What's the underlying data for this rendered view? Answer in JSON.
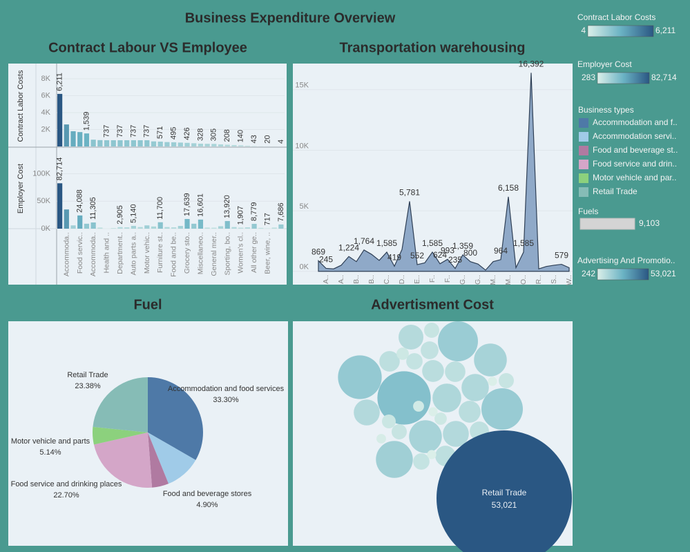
{
  "title": "Business Expenditure Overview",
  "color_range": [
    "#dbefe9",
    "#6bb3c4",
    "#2a5783"
  ],
  "legends": [
    {
      "title": "Contract Labor Costs",
      "min": 4,
      "max": 6211,
      "max_label": "6,211"
    },
    {
      "title": "Employer Cost",
      "min": 283,
      "max": 82714,
      "max_label": "82,714"
    },
    {
      "title": "Advertising And Promotio..",
      "min": 242,
      "max": 53021,
      "max_label": "53,021"
    }
  ],
  "fuels_legend": {
    "title": "Fuels",
    "max": 9103,
    "max_label": "9,103",
    "color": "#d4d4d4"
  },
  "business_types": {
    "title": "Business types",
    "items": [
      {
        "name": "Accommodation and f..",
        "color": "#4e79a7"
      },
      {
        "name": "Accommodation servi..",
        "color": "#a0cbe8"
      },
      {
        "name": "Food and beverage st..",
        "color": "#b07aa1"
      },
      {
        "name": "Food service and drin..",
        "color": "#d4a6c8"
      },
      {
        "name": "Motor vehicle and par..",
        "color": "#8cd17d"
      },
      {
        "name": "Retail Trade",
        "color": "#86bcb6"
      }
    ]
  },
  "chart_data": [
    {
      "type": "bar",
      "title": "Contract Labour VS  Employee",
      "categories": [
        null,
        "Accommoda..",
        null,
        "Food servic..",
        null,
        "Accommoda..",
        null,
        "Health and ..",
        null,
        "Department..",
        null,
        "Auto parts a..",
        null,
        "Motor vehic..",
        null,
        "Furniture st..",
        null,
        "Food and be..",
        null,
        "Grocery sto..",
        null,
        "Miscellaneo..",
        null,
        "General mer..",
        null,
        "Sporting, bo..",
        null,
        "Women's cl..",
        null,
        "All other ge..",
        null,
        "Beer, wine, ..",
        null,
        null
      ],
      "series": [
        {
          "name": "Contract Labor Costs",
          "values": [
            6211,
            2600,
            1800,
            1700,
            1539,
            800,
            750,
            737,
            737,
            737,
            737,
            737,
            737,
            737,
            600,
            571,
            520,
            495,
            460,
            426,
            380,
            328,
            315,
            305,
            250,
            208,
            170,
            140,
            90,
            43,
            30,
            20,
            10,
            4
          ],
          "value_labels": [
            "6,211",
            null,
            null,
            null,
            "1,539",
            null,
            null,
            "737",
            null,
            "737",
            null,
            "737",
            null,
            "737",
            null,
            "571",
            null,
            "495",
            null,
            "426",
            null,
            "328",
            null,
            "305",
            null,
            "208",
            null,
            "140",
            null,
            "43",
            null,
            "20",
            null,
            "4"
          ],
          "ylim": [
            0,
            9550
          ],
          "yticks": [
            {
              "value": 2000,
              "label": "2K"
            },
            {
              "value": 4000,
              "label": "4K"
            },
            {
              "value": 6000,
              "label": "6K"
            },
            {
              "value": 8000,
              "label": "8K"
            }
          ]
        },
        {
          "name": "Employer Cost",
          "values": [
            82714,
            35000,
            6000,
            24088,
            9000,
            11305,
            2000,
            283,
            1200,
            2905,
            2500,
            5140,
            3000,
            6000,
            4000,
            11700,
            3000,
            2500,
            5000,
            17639,
            9000,
            16601,
            2000,
            1800,
            4500,
            13920,
            3000,
            1907,
            2500,
            8779,
            1500,
            717,
            2000,
            7686
          ],
          "value_labels": [
            "82,714",
            null,
            null,
            "24,088",
            null,
            "11,305",
            null,
            null,
            null,
            "2,905",
            null,
            "5,140",
            null,
            null,
            null,
            "11,700",
            null,
            null,
            null,
            "17,639",
            null,
            "16,601",
            null,
            null,
            null,
            "13,920",
            null,
            "1,907",
            null,
            "8,779",
            null,
            "717",
            null,
            "7,686"
          ],
          "ylim": [
            0,
            146000
          ],
          "yticks": [
            {
              "value": 0,
              "label": "0K"
            },
            {
              "value": 50000,
              "label": "50K"
            },
            {
              "value": 100000,
              "label": "100K"
            }
          ]
        }
      ]
    },
    {
      "type": "area",
      "title": "Transportation warehousing",
      "color": "#8fa9c8",
      "line_color": "#2e3f55",
      "categories": [
        null,
        "A..",
        null,
        "A..",
        null,
        "B..",
        null,
        "B..",
        null,
        "C..",
        null,
        "D..",
        null,
        "E..",
        null,
        "F..",
        null,
        "F..",
        null,
        "G..",
        null,
        "G..",
        null,
        "M..",
        null,
        "M..",
        null,
        "O..",
        null,
        "R..",
        null,
        "S..",
        null,
        "W.."
      ],
      "values": [
        869,
        245,
        200,
        500,
        1224,
        800,
        1764,
        1400,
        900,
        1585,
        419,
        1800,
        5781,
        552,
        700,
        1585,
        624,
        993,
        235,
        1359,
        800,
        600,
        100,
        800,
        964,
        6158,
        300,
        1585,
        16392,
        200,
        400,
        500,
        579,
        300
      ],
      "value_labels": [
        "869",
        "245",
        null,
        null,
        "1,224",
        null,
        "1,764",
        null,
        null,
        "1,585",
        "419",
        null,
        "5,781",
        "552",
        null,
        "1,585",
        "624",
        "993",
        "235",
        "1,359",
        "800",
        null,
        null,
        null,
        "964",
        "6,158",
        null,
        "1,585",
        "16,392",
        null,
        null,
        null,
        "579",
        null
      ],
      "ylim": [
        -1100,
        17100
      ],
      "yticks": [
        {
          "value": 0,
          "label": "0K"
        },
        {
          "value": 5000,
          "label": "5K"
        },
        {
          "value": 10000,
          "label": "10K"
        },
        {
          "value": 15000,
          "label": "15K"
        }
      ]
    },
    {
      "type": "pie",
      "title": "Fuel",
      "categories": [
        "Accommodation and food services",
        null,
        "Food and beverage stores",
        "Food service and drinking places",
        "Motor vehicle and parts",
        "Retail Trade"
      ],
      "values": [
        33.3,
        10.58,
        4.9,
        22.7,
        5.14,
        23.38
      ],
      "value_labels": [
        "33.30%",
        null,
        "4.90%",
        "22.70%",
        "5.14%",
        "23.38%"
      ],
      "colors": [
        "#4e79a7",
        "#a0cbe8",
        "#b07aa1",
        "#d4a6c8",
        "#8cd17d",
        "#86bcb6"
      ]
    },
    {
      "type": "bubble",
      "title": "Advertisment Cost",
      "categories": [
        null,
        null,
        null,
        null,
        null,
        null,
        null,
        null,
        null,
        null,
        null,
        null,
        null,
        null,
        null,
        null,
        null,
        null,
        null,
        null,
        null,
        null,
        null,
        null,
        null,
        null,
        null,
        null,
        null,
        null,
        null,
        null,
        "Retail Trade"
      ],
      "values": [
        668,
        1788,
        4643,
        1217,
        438,
        779,
        914,
        3116,
        5540,
        8229,
        1385,
        1217,
        2164,
        242,
        668,
        2386,
        4968,
        1953,
        552,
        346,
        242,
        438,
        1385,
        668,
        3116,
        1953,
        1060,
        265,
        3944,
        779,
        1217,
        242,
        53021
      ],
      "value_labels": [
        null,
        null,
        null,
        null,
        null,
        null,
        null,
        null,
        null,
        null,
        null,
        null,
        null,
        null,
        null,
        null,
        null,
        null,
        null,
        null,
        null,
        null,
        null,
        null,
        null,
        null,
        null,
        null,
        null,
        null,
        null,
        null,
        "53,021"
      ]
    }
  ]
}
